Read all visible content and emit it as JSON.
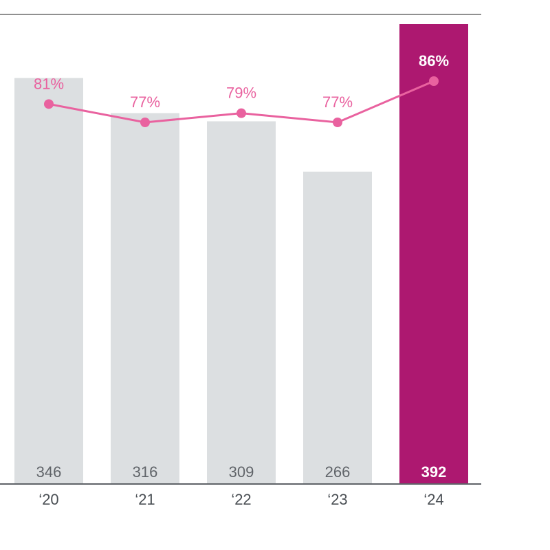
{
  "chart_data": {
    "type": "bar",
    "categories": [
      "‘20",
      "‘21",
      "‘22",
      "‘23",
      "‘24"
    ],
    "values": [
      346,
      316,
      309,
      266,
      392
    ],
    "value_labels": [
      "346",
      "316",
      "309",
      "266",
      "392"
    ],
    "highlight_index": 4,
    "ylim": [
      0,
      392
    ],
    "overlay_line": {
      "type": "line",
      "values": [
        81,
        77,
        79,
        77,
        86
      ],
      "labels": [
        "81%",
        "77%",
        "79%",
        "77%",
        "86%"
      ],
      "ylim": [
        59.2,
        90.2
      ]
    },
    "title": "",
    "xlabel": "",
    "ylabel": "",
    "grid": false,
    "colors": {
      "bar": "#dcdfe1",
      "bar_highlight": "#ad1870",
      "line": "#e9629f",
      "axis": "#5f6368",
      "top_rule": "#222222"
    }
  }
}
